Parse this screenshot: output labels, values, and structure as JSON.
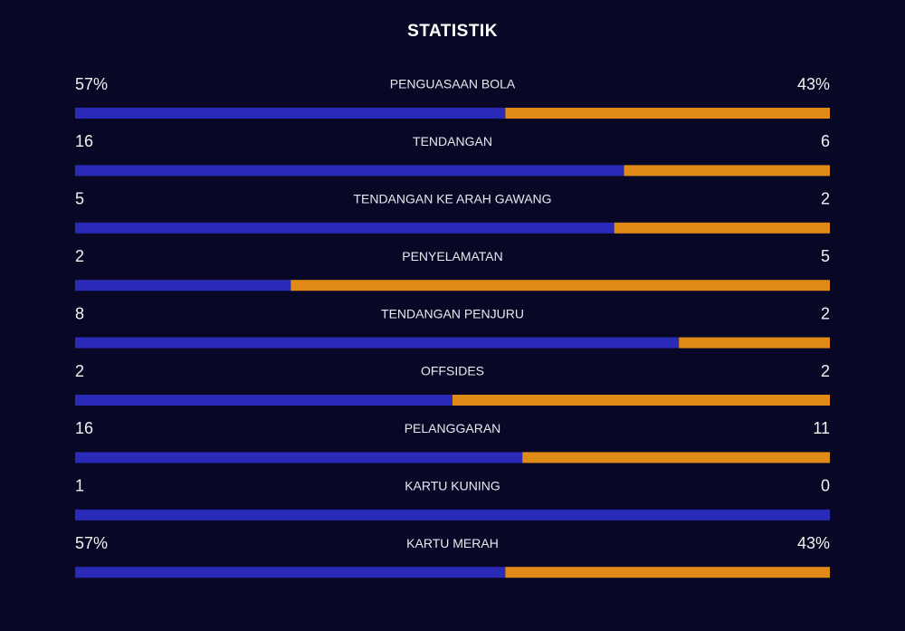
{
  "title": "STATISTIK",
  "colors": {
    "home": "#2a2ab8",
    "away": "#e08a17"
  },
  "rows": [
    {
      "label": "PENGUASAAN BOLA",
      "home": {
        "value": 57,
        "label": "57%"
      },
      "away": {
        "value": 43,
        "label": "43%"
      }
    },
    {
      "label": "TENDANGAN",
      "home": 16,
      "away": 6
    },
    {
      "label": "TENDANGAN KE ARAH GAWANG",
      "home": 5,
      "away": 2
    },
    {
      "label": "PENYELAMATAN",
      "home": 2,
      "away": 5
    },
    {
      "label": "TENDANGAN PENJURU",
      "home": 8,
      "away": 2
    },
    {
      "label": "OFFSIDES",
      "home": 2,
      "away": 2
    },
    {
      "label": "PELANGGARAN",
      "home": 16,
      "away": 11
    },
    {
      "label": "KARTU KUNING",
      "home": 1,
      "away": 0
    },
    {
      "label": "KARTU MERAH",
      "home": {
        "value": 57,
        "label": "57%"
      },
      "away": {
        "value": 43,
        "label": "43%"
      }
    }
  ]
}
